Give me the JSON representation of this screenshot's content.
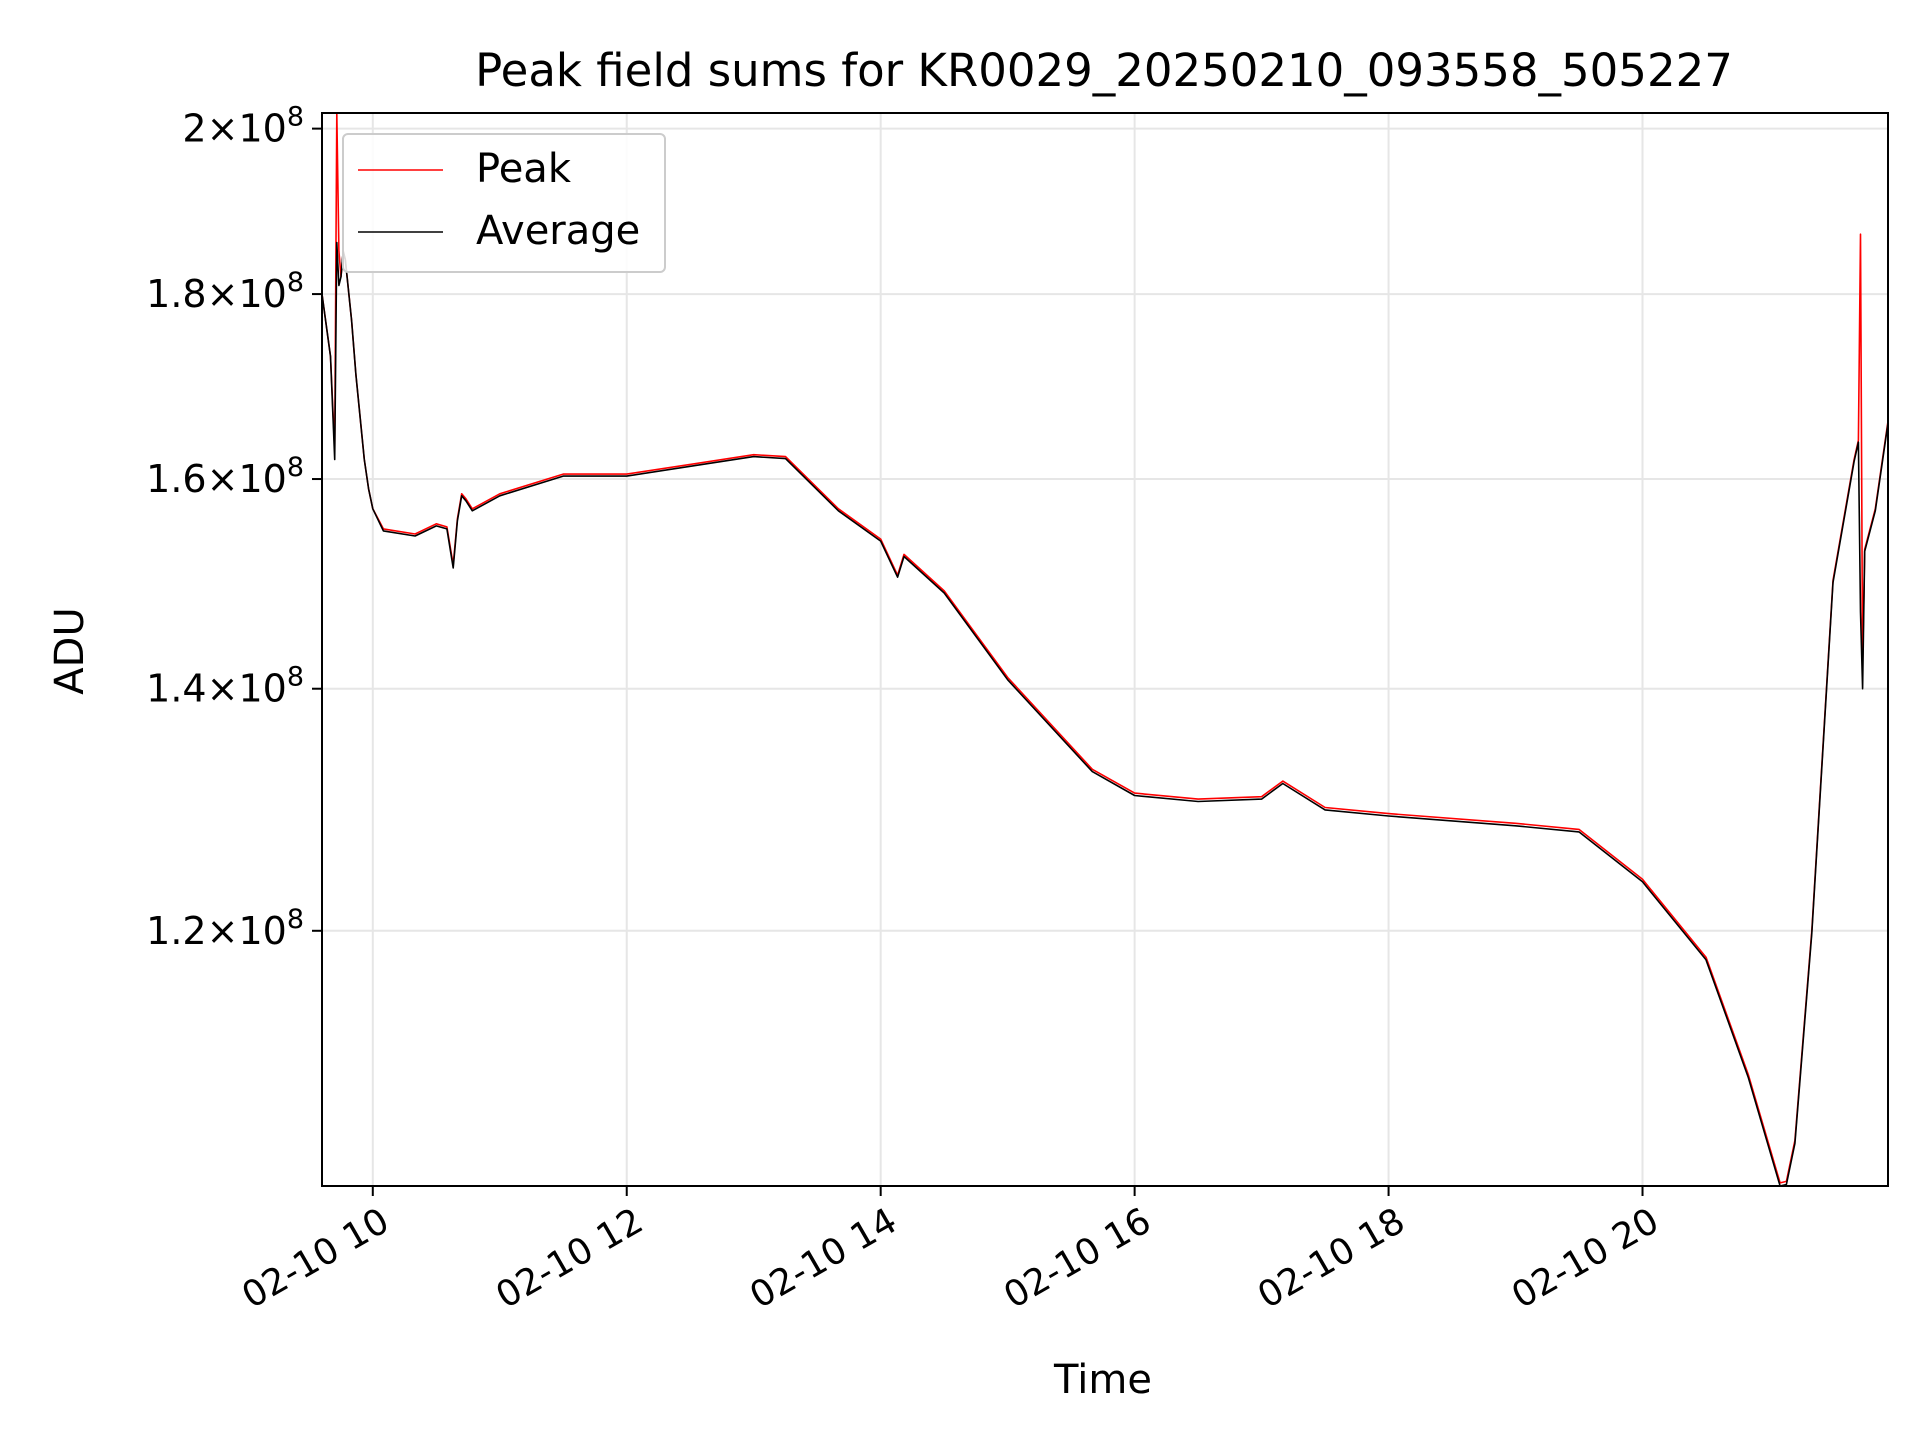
{
  "chart_data": {
    "type": "line",
    "title": "Peak field sums for KR0029_20250210_093558_505227",
    "xlabel": "Time",
    "ylabel": "ADU",
    "y_scale": "log",
    "grid": true,
    "legend_position": "top-left",
    "xlim": [
      "2025-02-10 09:36",
      "2025-02-10 21:56"
    ],
    "ylim": [
      102000000,
      202000000
    ],
    "x_ticks": [
      {
        "time": "2025-02-10 10:00",
        "label": "02-10 10"
      },
      {
        "time": "2025-02-10 12:00",
        "label": "02-10 12"
      },
      {
        "time": "2025-02-10 14:00",
        "label": "02-10 14"
      },
      {
        "time": "2025-02-10 16:00",
        "label": "02-10 16"
      },
      {
        "time": "2025-02-10 18:00",
        "label": "02-10 18"
      },
      {
        "time": "2025-02-10 20:00",
        "label": "02-10 20"
      }
    ],
    "y_ticks": [
      {
        "value": 120000000,
        "mantissa": "1.2",
        "base": "10",
        "exp": "8"
      },
      {
        "value": 140000000,
        "mantissa": "1.4",
        "base": "10",
        "exp": "8"
      },
      {
        "value": 160000000,
        "mantissa": "1.6",
        "base": "10",
        "exp": "8"
      },
      {
        "value": 180000000,
        "mantissa": "1.8",
        "base": "10",
        "exp": "8"
      },
      {
        "value": 200000000,
        "mantissa": "2",
        "base": "10",
        "exp": "8"
      }
    ],
    "series": [
      {
        "name": "Peak",
        "color": "#ff0000",
        "x": [
          "2025-02-10 09:36",
          "2025-02-10 09:40",
          "2025-02-10 09:42",
          "2025-02-10 09:43",
          "2025-02-10 09:44",
          "2025-02-10 09:45",
          "2025-02-10 09:46",
          "2025-02-10 09:47",
          "2025-02-10 09:50",
          "2025-02-10 09:52",
          "2025-02-10 09:56",
          "2025-02-10 09:58",
          "2025-02-10 10:00",
          "2025-02-10 10:05",
          "2025-02-10 10:20",
          "2025-02-10 10:30",
          "2025-02-10 10:35",
          "2025-02-10 10:38",
          "2025-02-10 10:40",
          "2025-02-10 10:42",
          "2025-02-10 10:44",
          "2025-02-10 10:47",
          "2025-02-10 11:00",
          "2025-02-10 11:30",
          "2025-02-10 12:00",
          "2025-02-10 12:30",
          "2025-02-10 13:00",
          "2025-02-10 13:15",
          "2025-02-10 13:40",
          "2025-02-10 14:00",
          "2025-02-10 14:08",
          "2025-02-10 14:11",
          "2025-02-10 14:30",
          "2025-02-10 15:00",
          "2025-02-10 15:40",
          "2025-02-10 16:00",
          "2025-02-10 16:30",
          "2025-02-10 17:00",
          "2025-02-10 17:10",
          "2025-02-10 17:30",
          "2025-02-10 18:00",
          "2025-02-10 19:00",
          "2025-02-10 19:30",
          "2025-02-10 20:00",
          "2025-02-10 20:30",
          "2025-02-10 20:50",
          "2025-02-10 21:05",
          "2025-02-10 21:08",
          "2025-02-10 21:12",
          "2025-02-10 21:20",
          "2025-02-10 21:30",
          "2025-02-10 21:40",
          "2025-02-10 21:42",
          "2025-02-10 21:43",
          "2025-02-10 21:44",
          "2025-02-10 21:45",
          "2025-02-10 21:50",
          "2025-02-10 21:56"
        ],
        "y": [
          180000000,
          173000000,
          163000000,
          202000000,
          185000000,
          182000000,
          185000000,
          184000000,
          177000000,
          171000000,
          162000000,
          159000000,
          157000000,
          155000000,
          154500000,
          155500000,
          155200000,
          151500000,
          156000000,
          158500000,
          158000000,
          157000000,
          158500000,
          160500000,
          160500000,
          161500000,
          162500000,
          162300000,
          157000000,
          154000000,
          150500000,
          152500000,
          149000000,
          141000000,
          133000000,
          131000000,
          130500000,
          130700000,
          132000000,
          129800000,
          129300000,
          128500000,
          128000000,
          124000000,
          118000000,
          109500000,
          102200000,
          102300000,
          105000000,
          120000000,
          150000000,
          162000000,
          164000000,
          187000000,
          142000000,
          153000000,
          157000000,
          166000000
        ]
      },
      {
        "name": "Average",
        "color": "#000000",
        "x": [
          "2025-02-10 09:36",
          "2025-02-10 09:40",
          "2025-02-10 09:42",
          "2025-02-10 09:43",
          "2025-02-10 09:44",
          "2025-02-10 09:45",
          "2025-02-10 09:46",
          "2025-02-10 09:47",
          "2025-02-10 09:50",
          "2025-02-10 09:52",
          "2025-02-10 09:56",
          "2025-02-10 09:58",
          "2025-02-10 10:00",
          "2025-02-10 10:05",
          "2025-02-10 10:20",
          "2025-02-10 10:30",
          "2025-02-10 10:35",
          "2025-02-10 10:38",
          "2025-02-10 10:40",
          "2025-02-10 10:42",
          "2025-02-10 10:44",
          "2025-02-10 10:47",
          "2025-02-10 11:00",
          "2025-02-10 11:30",
          "2025-02-10 12:00",
          "2025-02-10 12:30",
          "2025-02-10 13:00",
          "2025-02-10 13:15",
          "2025-02-10 13:40",
          "2025-02-10 14:00",
          "2025-02-10 14:08",
          "2025-02-10 14:11",
          "2025-02-10 14:30",
          "2025-02-10 15:00",
          "2025-02-10 15:40",
          "2025-02-10 16:00",
          "2025-02-10 16:30",
          "2025-02-10 17:00",
          "2025-02-10 17:10",
          "2025-02-10 17:30",
          "2025-02-10 18:00",
          "2025-02-10 19:00",
          "2025-02-10 19:30",
          "2025-02-10 20:00",
          "2025-02-10 20:30",
          "2025-02-10 20:50",
          "2025-02-10 21:05",
          "2025-02-10 21:08",
          "2025-02-10 21:12",
          "2025-02-10 21:20",
          "2025-02-10 21:30",
          "2025-02-10 21:40",
          "2025-02-10 21:42",
          "2025-02-10 21:43",
          "2025-02-10 21:44",
          "2025-02-10 21:45",
          "2025-02-10 21:50",
          "2025-02-10 21:56"
        ],
        "y": [
          180000000,
          173000000,
          162000000,
          186000000,
          181000000,
          182000000,
          185000000,
          184000000,
          177000000,
          171000000,
          162000000,
          159000000,
          157000000,
          154800000,
          154300000,
          155300000,
          155000000,
          151200000,
          155800000,
          158300000,
          157800000,
          156800000,
          158300000,
          160300000,
          160300000,
          161300000,
          162300000,
          162100000,
          156800000,
          153800000,
          150300000,
          152300000,
          148800000,
          140800000,
          132800000,
          130800000,
          130300000,
          130500000,
          131800000,
          129600000,
          129100000,
          128300000,
          127800000,
          123800000,
          117800000,
          109300000,
          102000000,
          102100000,
          104800000,
          119800000,
          149800000,
          161800000,
          163800000,
          147000000,
          140000000,
          152800000,
          156800000,
          165800000
        ]
      }
    ]
  }
}
